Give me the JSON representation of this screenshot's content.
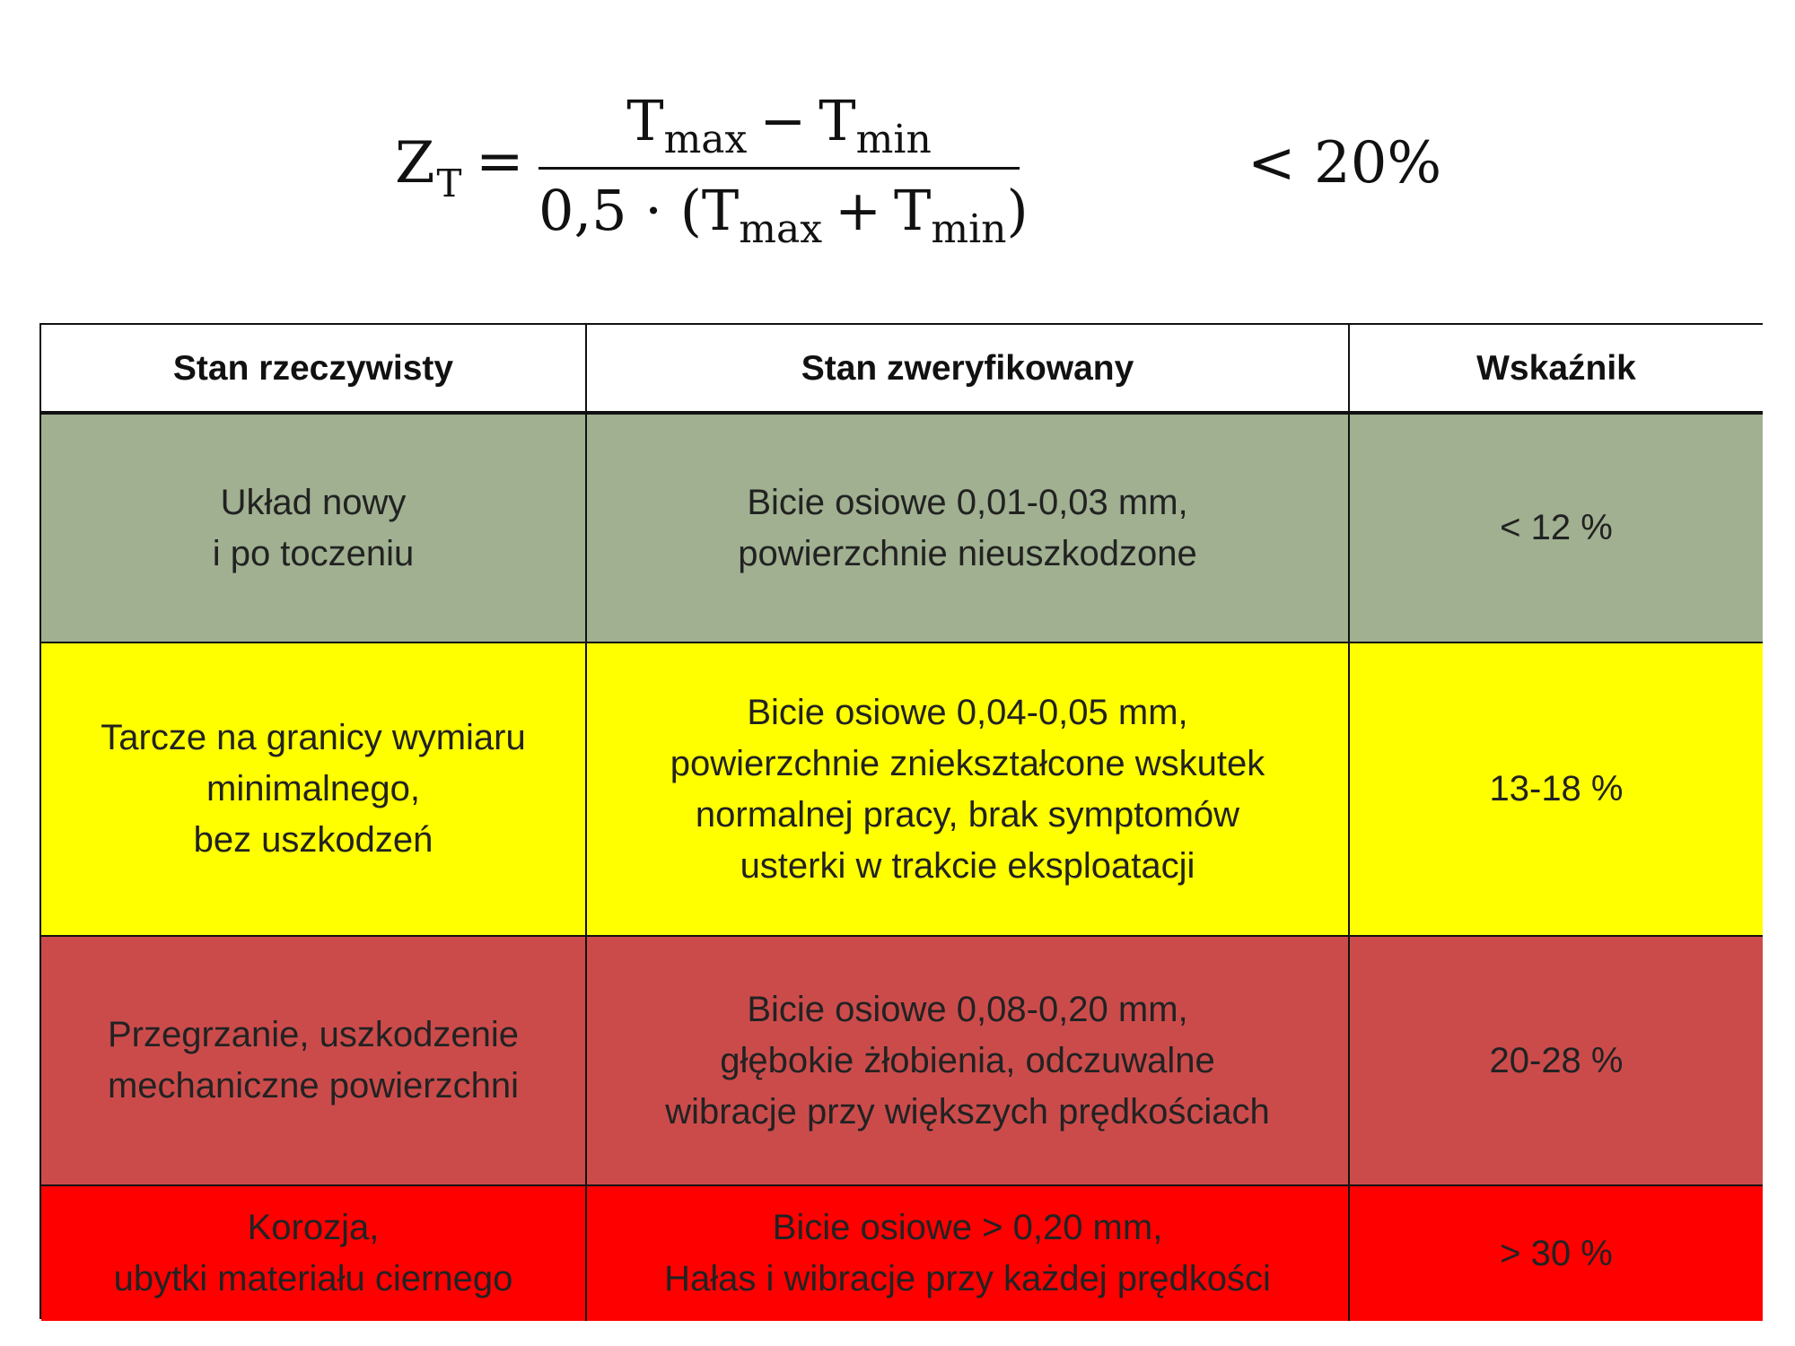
{
  "formula": {
    "lhs": "Z",
    "lhs_sub": "T",
    "equals": "=",
    "num_T1": "T",
    "num_sub1": "max",
    "num_op": "−",
    "num_T2": "T",
    "num_sub2": "min",
    "den_prefix": "0,5 · (",
    "den_T1": "T",
    "den_sub1": "max",
    "den_op": "+",
    "den_T2": "T",
    "den_sub2": "min",
    "den_suffix": ")",
    "threshold": "< 20%"
  },
  "table": {
    "headers": [
      "Stan rzeczywisty",
      "Stan zweryfikowany",
      "Wskaźnik"
    ],
    "rows": [
      {
        "color": "#a0b090",
        "actual": "Układ nowy\ni po toczeniu",
        "verified": "Bicie osiowe 0,01-0,03 mm,\npowierzchnie nieuszkodzone",
        "indicator": "< 12 %"
      },
      {
        "color": "#ffff00",
        "actual": "Tarcze na granicy wymiaru\nminimalnego,\nbez  uszkodzeń",
        "verified": "Bicie osiowe 0,04-0,05 mm,\npowierzchnie zniekształcone wskutek\nnormalnej pracy, brak  symptomów\nusterki  w trakcie eksploatacji",
        "indicator": "13-18 %"
      },
      {
        "color": "#cb4b4b",
        "actual": "Przegrzanie, uszkodzenie\nmechaniczne powierzchni",
        "verified": "Bicie osiowe 0,08-0,20 mm,\ngłębokie żłobienia, odczuwalne\nwibracje przy większych prędkościach",
        "indicator": "20-28 %"
      },
      {
        "color": "#ff0000",
        "actual": "Korozja,\n ubytki materiału ciernego",
        "verified": "Bicie osiowe > 0,20 mm,\nHałas i wibracje przy każdej prędkości",
        "indicator": "> 30 %"
      }
    ]
  }
}
